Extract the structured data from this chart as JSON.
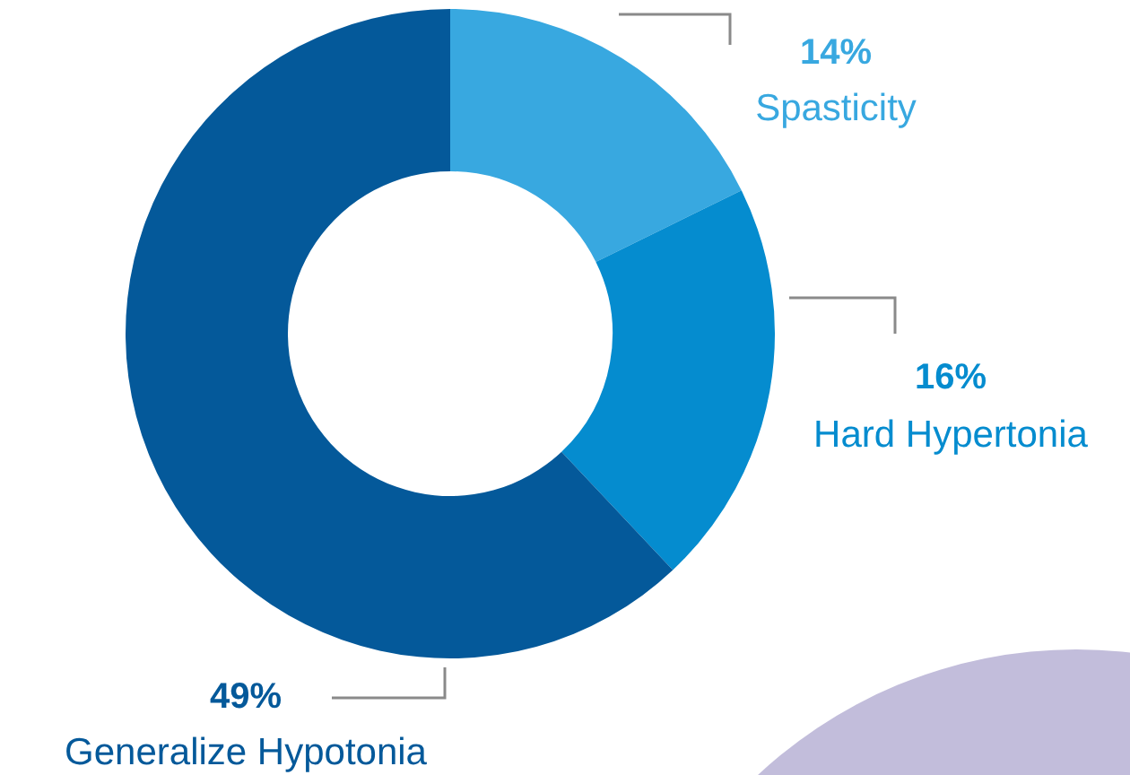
{
  "chart_data": {
    "type": "donut",
    "categories": [
      "Spasticity",
      "Hard Hypertonia",
      "Generalize Hypotonia"
    ],
    "values": [
      14,
      16,
      49
    ],
    "colors": [
      "#38a8e0",
      "#058ccf",
      "#04599a"
    ],
    "value_labels": [
      "14%",
      "16%",
      "49%"
    ],
    "legend": false
  }
}
